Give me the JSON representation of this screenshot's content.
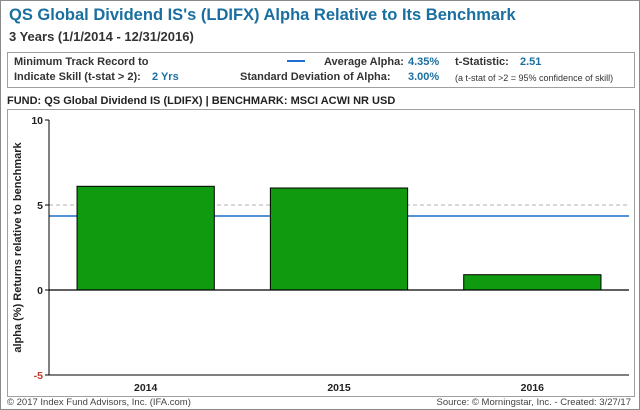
{
  "title": "QS Global Dividend IS's (LDIFX) Alpha Relative to Its Benchmark",
  "subtitle": "3 Years (1/1/2014 - 12/31/2016)",
  "stats": {
    "min_track_label_1": "Minimum Track Record to",
    "min_track_label_2": "Indicate Skill (t-stat > 2):",
    "min_track_value": "2 Yrs",
    "avg_alpha_label": "Average Alpha:",
    "avg_alpha_value": "4.35%",
    "tstat_label": "t-Statistic:",
    "tstat_value": "2.51",
    "std_label": "Standard Deviation of Alpha:",
    "std_value": "3.00%",
    "tstat_note": "(a t-stat of >2 = 95% confidence of skill)"
  },
  "fund_line": "FUND: QS Global Dividend IS (LDIFX)  | BENCHMARK: MSCI ACWI NR USD",
  "footer": {
    "left": "© 2017 Index Fund Advisors, Inc. (IFA.com)",
    "right": "Source: © Morningstar, Inc. - Created: 3/27/17"
  },
  "colors": {
    "bar": "#0f9a10",
    "average_line": "#1f6fd1",
    "title": "#1a6fa0",
    "reference_line": "#b0b0b0"
  },
  "chart_data": {
    "type": "bar",
    "categories": [
      "2014",
      "2015",
      "2016"
    ],
    "values": [
      6.1,
      6.0,
      0.9
    ],
    "ylabel": "alpha (%) Returns relative to benchmark",
    "xlabel": "",
    "ylim": [
      -5,
      10
    ],
    "yticks": [
      -5,
      0,
      5,
      10
    ],
    "average_alpha": 4.35,
    "reference_line": 5,
    "grid": false
  }
}
